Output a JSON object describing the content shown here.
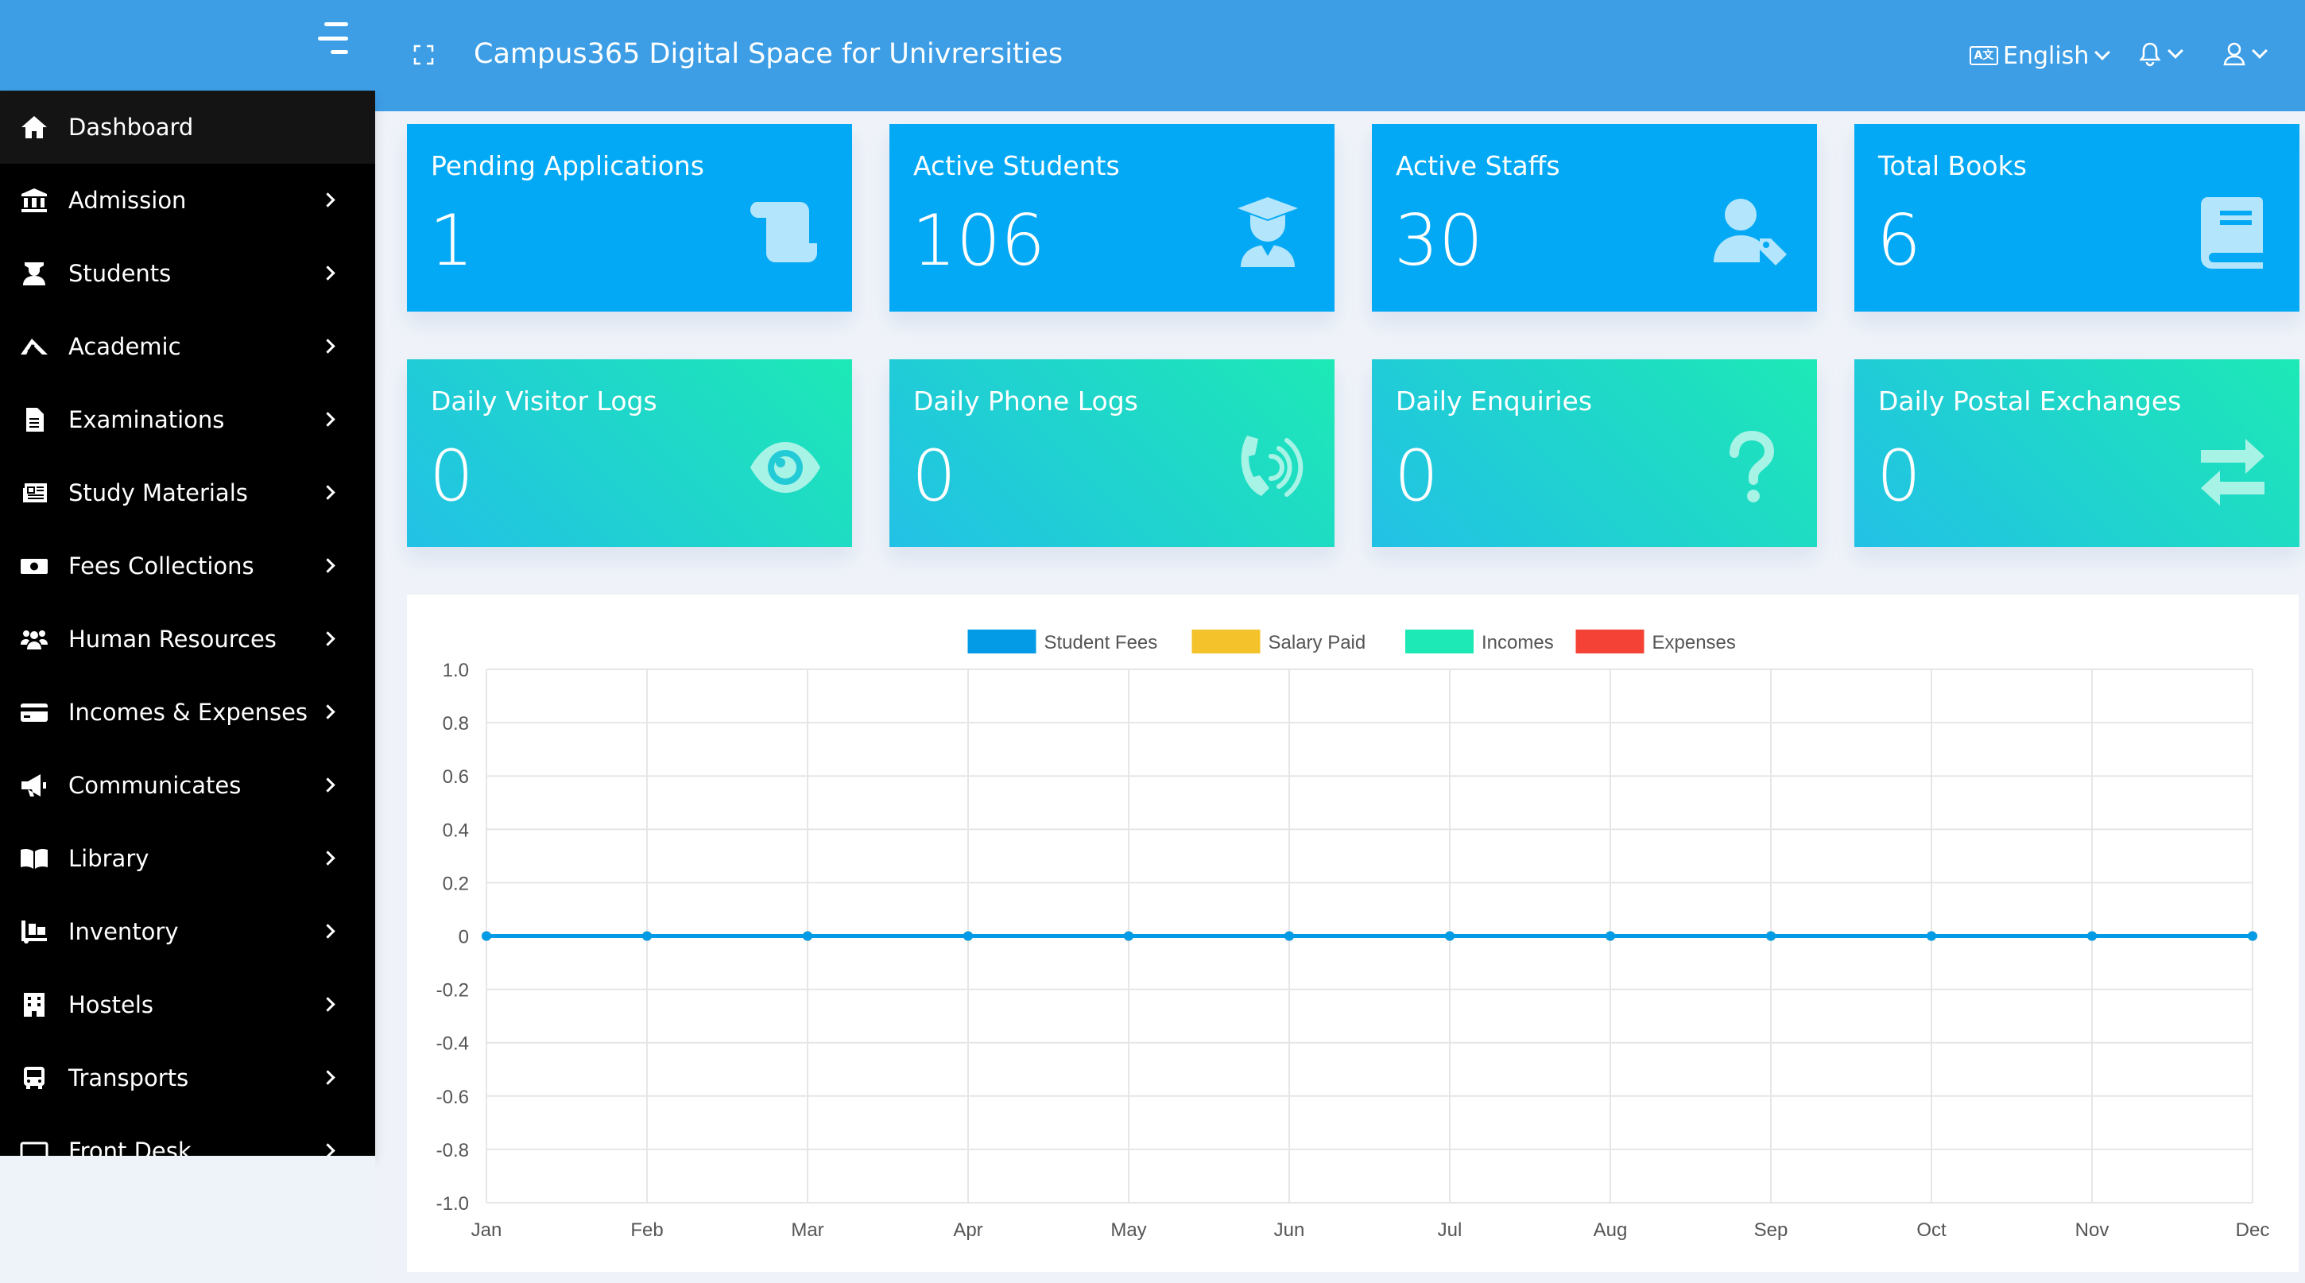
{
  "header": {
    "title": "Campus365 Digital Space for Univrersities",
    "language": "English",
    "language_badge": "A文",
    "bg_color": "#3d9ee6"
  },
  "sidebar": {
    "items": [
      {
        "label": "Dashboard",
        "icon": "home-icon",
        "active": true,
        "arrow": false
      },
      {
        "label": "Admission",
        "icon": "university-icon",
        "arrow": true
      },
      {
        "label": "Students",
        "icon": "student-icon",
        "arrow": true
      },
      {
        "label": "Academic",
        "icon": "academic-icon",
        "arrow": true
      },
      {
        "label": "Examinations",
        "icon": "file-icon",
        "arrow": true
      },
      {
        "label": "Study Materials",
        "icon": "newspaper-icon",
        "arrow": true
      },
      {
        "label": "Fees Collections",
        "icon": "money-icon",
        "arrow": true
      },
      {
        "label": "Human Resources",
        "icon": "users-icon",
        "arrow": true
      },
      {
        "label": "Incomes & Expenses",
        "icon": "credit-card-icon",
        "arrow": true
      },
      {
        "label": "Communicates",
        "icon": "megaphone-icon",
        "arrow": true
      },
      {
        "label": "Library",
        "icon": "book-open-icon",
        "arrow": true
      },
      {
        "label": "Inventory",
        "icon": "dolly-icon",
        "arrow": true
      },
      {
        "label": "Hostels",
        "icon": "building-icon",
        "arrow": true
      },
      {
        "label": "Transports",
        "icon": "bus-icon",
        "arrow": true
      },
      {
        "label": "Front Desk",
        "icon": "desktop-icon",
        "arrow": true
      }
    ]
  },
  "cards": [
    {
      "label": "Pending Applications",
      "value": "1",
      "icon": "scroll-icon",
      "color": "#03a9f4"
    },
    {
      "label": "Active Students",
      "value": "106",
      "icon": "graduate-icon",
      "color": "#03a9f4"
    },
    {
      "label": "Active Staffs",
      "value": "30",
      "icon": "user-tag-icon",
      "color": "#03a9f4"
    },
    {
      "label": "Total Books",
      "value": "6",
      "icon": "book-icon",
      "color": "#03a9f4"
    },
    {
      "label": "Daily Visitor Logs",
      "value": "0",
      "icon": "eye-icon",
      "color": "#1fd8c8"
    },
    {
      "label": "Daily Phone Logs",
      "value": "0",
      "icon": "phone-volume-icon",
      "color": "#1fd8c8"
    },
    {
      "label": "Daily Enquiries",
      "value": "0",
      "icon": "question-icon",
      "color": "#1fd8c8"
    },
    {
      "label": "Daily Postal Exchanges",
      "value": "0",
      "icon": "exchange-icon",
      "color": "#1fd8c8"
    }
  ],
  "chart_data": {
    "type": "line",
    "categories": [
      "Jan",
      "Feb",
      "Mar",
      "Apr",
      "May",
      "Jun",
      "Jul",
      "Aug",
      "Sep",
      "Oct",
      "Nov",
      "Dec"
    ],
    "series": [
      {
        "name": "Student Fees",
        "color": "#039be5",
        "values": [
          0,
          0,
          0,
          0,
          0,
          0,
          0,
          0,
          0,
          0,
          0,
          0
        ]
      },
      {
        "name": "Salary Paid",
        "color": "#f4c22b",
        "values": [
          0,
          0,
          0,
          0,
          0,
          0,
          0,
          0,
          0,
          0,
          0,
          0
        ]
      },
      {
        "name": "Incomes",
        "color": "#1de9b6",
        "values": [
          0,
          0,
          0,
          0,
          0,
          0,
          0,
          0,
          0,
          0,
          0,
          0
        ]
      },
      {
        "name": "Expenses",
        "color": "#f44236",
        "values": [
          0,
          0,
          0,
          0,
          0,
          0,
          0,
          0,
          0,
          0,
          0,
          0
        ]
      }
    ],
    "y_ticks": [
      "1.0",
      "0.8",
      "0.6",
      "0.4",
      "0.2",
      "0",
      "-0.2",
      "-0.4",
      "-0.6",
      "-0.8",
      "-1.0"
    ],
    "ylim": [
      -1,
      1
    ],
    "grid": true,
    "legend_position": "top-center",
    "title": "",
    "xlabel": "",
    "ylabel": ""
  }
}
